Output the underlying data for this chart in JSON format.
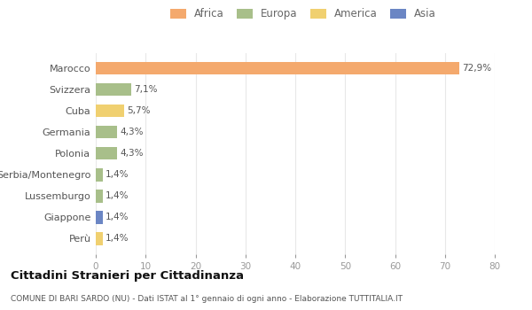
{
  "categories": [
    "Marocco",
    "Svizzera",
    "Cuba",
    "Germania",
    "Polonia",
    "Serbia/Montenegro",
    "Lussemburgo",
    "Giappone",
    "Perù"
  ],
  "values": [
    72.9,
    7.1,
    5.7,
    4.3,
    4.3,
    1.4,
    1.4,
    1.4,
    1.4
  ],
  "labels": [
    "72,9%",
    "7,1%",
    "5,7%",
    "4,3%",
    "4,3%",
    "1,4%",
    "1,4%",
    "1,4%",
    "1,4%"
  ],
  "colors": [
    "#F4A96D",
    "#A8BF8A",
    "#F0D070",
    "#A8BF8A",
    "#A8BF8A",
    "#A8BF8A",
    "#A8BF8A",
    "#6B86C4",
    "#F0D070"
  ],
  "legend_labels": [
    "Africa",
    "Europa",
    "America",
    "Asia"
  ],
  "legend_colors": [
    "#F4A96D",
    "#A8BF8A",
    "#F0D070",
    "#6B86C4"
  ],
  "title": "Cittadini Stranieri per Cittadinanza",
  "subtitle": "COMUNE DI BARI SARDO (NU) - Dati ISTAT al 1° gennaio di ogni anno - Elaborazione TUTTITALIA.IT",
  "xlim": [
    0,
    80
  ],
  "xticks": [
    0,
    10,
    20,
    30,
    40,
    50,
    60,
    70,
    80
  ],
  "background_color": "#ffffff",
  "grid_color": "#e8e8e8",
  "figsize": [
    6.0,
    3.5
  ],
  "dpi": 100
}
